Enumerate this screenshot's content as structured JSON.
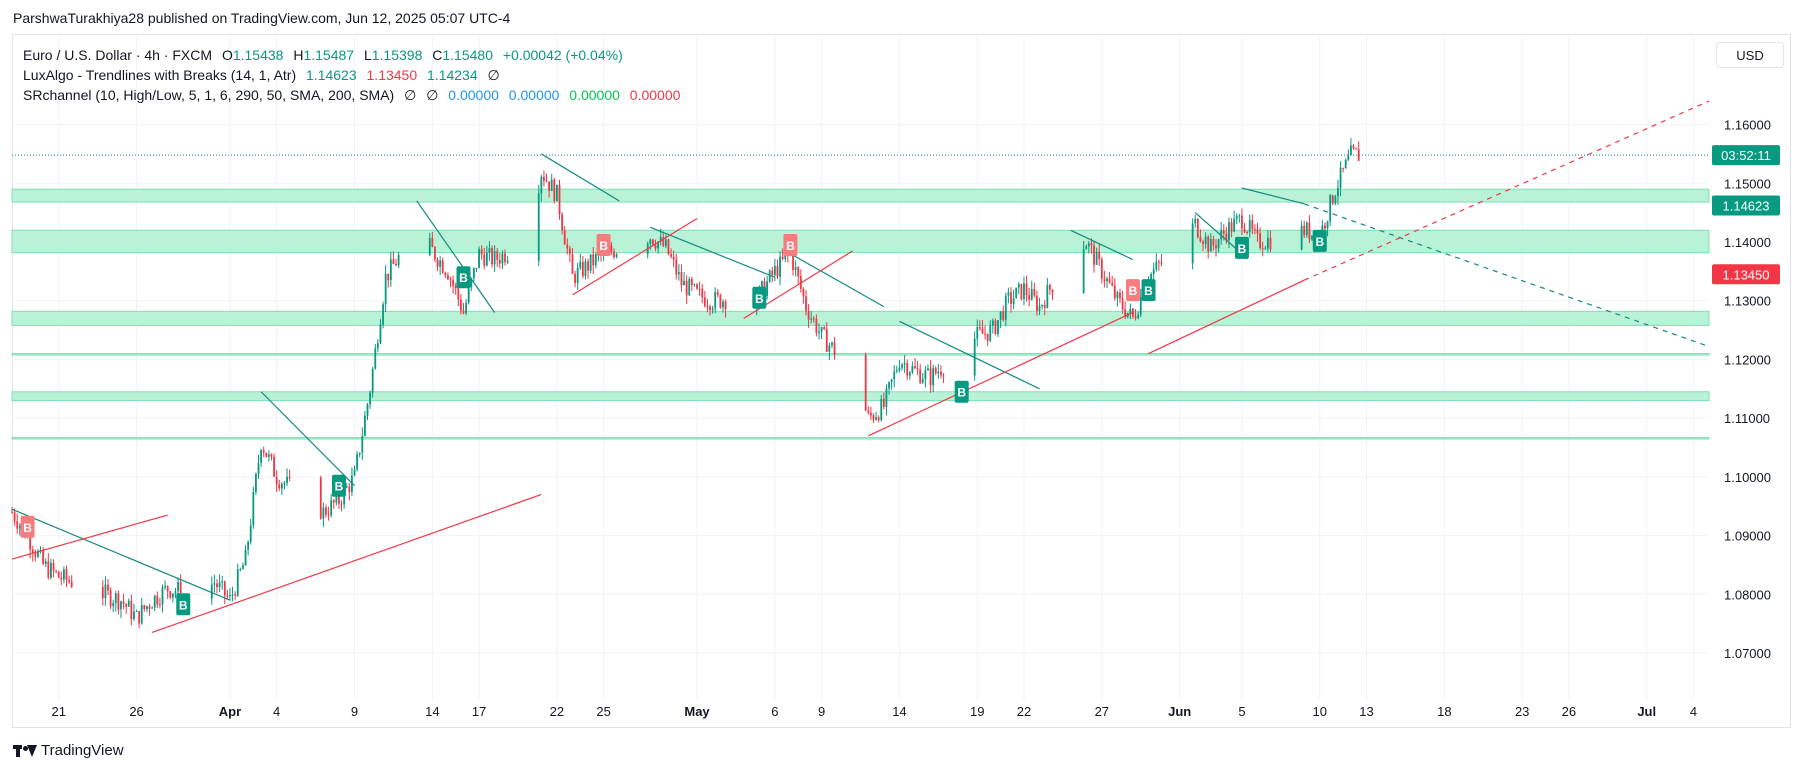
{
  "header": {
    "published_line": "ParshwaTurakhiya28 published on TradingView.com, Jun 12, 2025 05:07 UTC-4"
  },
  "legend": {
    "symbol": {
      "title": "Euro / U.S. Dollar · 4h · FXCM",
      "o_label": "O",
      "o_value": "1.15438",
      "h_label": "H",
      "h_value": "1.15487",
      "l_label": "L",
      "l_value": "1.15398",
      "c_label": "C",
      "c_value": "1.15480",
      "change": "+0.00042 (+0.04%)"
    },
    "luxalgo": {
      "title": "LuxAlgo - Trendlines with Breaks (14, 1, Atr)",
      "v1": "1.14623",
      "v2": "1.13450",
      "v3": "1.14234",
      "v4": "∅"
    },
    "srchannel": {
      "title": "SRchannel (10, High/Low, 5, 1, 6, 290, 50, SMA, 200, SMA)",
      "v1": "∅",
      "v2": "∅",
      "v3": "0.00000",
      "v4": "0.00000",
      "v5": "0.00000",
      "v6": "0.00000"
    }
  },
  "currency_button": "USD",
  "footer": {
    "brand": "TradingView"
  },
  "colors": {
    "up": "#089981",
    "down": "#f23645",
    "zone": "#b9f2d6",
    "zone_edge": "#7fe0b2",
    "teal_line": "#138a7f",
    "red_line": "#f23645",
    "grid": "#f0f3fa",
    "axis_text": "#131722"
  },
  "chart_data": {
    "type": "candlestick",
    "symbol": "EUR/USD",
    "interval": "4h",
    "y_axis": {
      "ticks": [
        1.16,
        1.15,
        1.14,
        1.13,
        1.12,
        1.11,
        1.1,
        1.09,
        1.08,
        1.07
      ],
      "tick_labels": [
        "1.16000",
        "1.15000",
        "1.14000",
        "1.13000",
        "1.12000",
        "1.11000",
        "1.10000",
        "1.09000",
        "1.08000",
        "1.07000"
      ],
      "range": [
        1.062,
        1.171
      ]
    },
    "x_axis": {
      "range": [
        "2025-03-18",
        "2025-07-05"
      ],
      "ticks": [
        {
          "date": "2025-03-21",
          "label": "21",
          "bold": false
        },
        {
          "date": "2025-03-26",
          "label": "26",
          "bold": false
        },
        {
          "date": "2025-04-01",
          "label": "Apr",
          "bold": true
        },
        {
          "date": "2025-04-04",
          "label": "4",
          "bold": false
        },
        {
          "date": "2025-04-09",
          "label": "9",
          "bold": false
        },
        {
          "date": "2025-04-14",
          "label": "14",
          "bold": false
        },
        {
          "date": "2025-04-17",
          "label": "17",
          "bold": false
        },
        {
          "date": "2025-04-22",
          "label": "22",
          "bold": false
        },
        {
          "date": "2025-04-25",
          "label": "25",
          "bold": false
        },
        {
          "date": "2025-05-01",
          "label": "May",
          "bold": true
        },
        {
          "date": "2025-05-06",
          "label": "6",
          "bold": false
        },
        {
          "date": "2025-05-09",
          "label": "9",
          "bold": false
        },
        {
          "date": "2025-05-14",
          "label": "14",
          "bold": false
        },
        {
          "date": "2025-05-19",
          "label": "19",
          "bold": false
        },
        {
          "date": "2025-05-22",
          "label": "22",
          "bold": false
        },
        {
          "date": "2025-05-27",
          "label": "27",
          "bold": false
        },
        {
          "date": "2025-06-01",
          "label": "Jun",
          "bold": true
        },
        {
          "date": "2025-06-05",
          "label": "5",
          "bold": false
        },
        {
          "date": "2025-06-10",
          "label": "10",
          "bold": false
        },
        {
          "date": "2025-06-13",
          "label": "13",
          "bold": false
        },
        {
          "date": "2025-06-18",
          "label": "18",
          "bold": false
        },
        {
          "date": "2025-06-23",
          "label": "23",
          "bold": false
        },
        {
          "date": "2025-06-26",
          "label": "26",
          "bold": false
        },
        {
          "date": "2025-07-01",
          "label": "Jul",
          "bold": true
        },
        {
          "date": "2025-07-04",
          "label": "4",
          "bold": false
        }
      ]
    },
    "price_path": [
      [
        "2025-03-18",
        1.094
      ],
      [
        "2025-03-19",
        1.09
      ],
      [
        "2025-03-20",
        1.085
      ],
      [
        "2025-03-21",
        1.083
      ],
      [
        "2025-03-24",
        1.08
      ],
      [
        "2025-03-25",
        1.079
      ],
      [
        "2025-03-26",
        1.076
      ],
      [
        "2025-03-27",
        1.079
      ],
      [
        "2025-03-28",
        1.081
      ],
      [
        "2025-03-30",
        1.08
      ],
      [
        "2025-03-31",
        1.082
      ],
      [
        "2025-04-01",
        1.079
      ],
      [
        "2025-04-02",
        1.086
      ],
      [
        "2025-04-03",
        1.106
      ],
      [
        "2025-04-04",
        1.1
      ],
      [
        "2025-04-07",
        1.094
      ],
      [
        "2025-04-08",
        1.096
      ],
      [
        "2025-04-09",
        1.1
      ],
      [
        "2025-04-10",
        1.115
      ],
      [
        "2025-04-11",
        1.134
      ],
      [
        "2025-04-13",
        1.142
      ],
      [
        "2025-04-15",
        1.135
      ],
      [
        "2025-04-16",
        1.128
      ],
      [
        "2025-04-17",
        1.138
      ],
      [
        "2025-04-18",
        1.137
      ],
      [
        "2025-04-20",
        1.14
      ],
      [
        "2025-04-21",
        1.152
      ],
      [
        "2025-04-22",
        1.148
      ],
      [
        "2025-04-23",
        1.134
      ],
      [
        "2025-04-24",
        1.136
      ],
      [
        "2025-04-25",
        1.138
      ],
      [
        "2025-04-28",
        1.141
      ],
      [
        "2025-04-29",
        1.139
      ],
      [
        "2025-04-30",
        1.133
      ],
      [
        "2025-05-01",
        1.131
      ],
      [
        "2025-05-02",
        1.13
      ],
      [
        "2025-05-05",
        1.131
      ],
      [
        "2025-05-06",
        1.135
      ],
      [
        "2025-05-07",
        1.138
      ],
      [
        "2025-05-08",
        1.129
      ],
      [
        "2025-05-09",
        1.124
      ],
      [
        "2025-05-11",
        1.118
      ],
      [
        "2025-05-12",
        1.11
      ],
      [
        "2025-05-13",
        1.112
      ],
      [
        "2025-05-14",
        1.12
      ],
      [
        "2025-05-15",
        1.118
      ],
      [
        "2025-05-16",
        1.117
      ],
      [
        "2025-05-19",
        1.124
      ],
      [
        "2025-05-20",
        1.125
      ],
      [
        "2025-05-21",
        1.13
      ],
      [
        "2025-05-22",
        1.132
      ],
      [
        "2025-05-23",
        1.129
      ],
      [
        "2025-05-25",
        1.138
      ],
      [
        "2025-05-26",
        1.14
      ],
      [
        "2025-05-27",
        1.135
      ],
      [
        "2025-05-28",
        1.13
      ],
      [
        "2025-05-29",
        1.127
      ],
      [
        "2025-05-30",
        1.134
      ],
      [
        "2025-06-02",
        1.143
      ],
      [
        "2025-06-03",
        1.139
      ],
      [
        "2025-06-04",
        1.142
      ],
      [
        "2025-06-05",
        1.144
      ],
      [
        "2025-06-06",
        1.14
      ],
      [
        "2025-06-08",
        1.141
      ],
      [
        "2025-06-09",
        1.142
      ],
      [
        "2025-06-10",
        1.141
      ],
      [
        "2025-06-11",
        1.149
      ],
      [
        "2025-06-12",
        1.1548
      ]
    ],
    "sr_zones": [
      {
        "low": 1.1468,
        "high": 1.149
      },
      {
        "low": 1.1382,
        "high": 1.142
      },
      {
        "low": 1.1258,
        "high": 1.1282
      },
      {
        "low": 1.113,
        "high": 1.1145
      },
      {
        "low": 1.1208,
        "high": 1.121
      },
      {
        "low": 1.1065,
        "high": 1.1067
      }
    ],
    "last_price_line": 1.1548,
    "price_labels": [
      {
        "text": "03:52:11",
        "price": 1.1548,
        "color": "#089981"
      },
      {
        "text": "1.14623",
        "price": 1.14623,
        "color": "#089981"
      },
      {
        "text": "1.13450",
        "price": 1.1345,
        "color": "#f23645"
      }
    ],
    "trendlines": [
      {
        "color": "teal",
        "x1": "2025-03-18",
        "y1": 1.0945,
        "x2": "2025-04-01",
        "y2": 1.079
      },
      {
        "color": "teal",
        "x1": "2025-04-03",
        "y1": 1.1145,
        "x2": "2025-04-09",
        "y2": 1.0985
      },
      {
        "color": "teal",
        "x1": "2025-04-13",
        "y1": 1.147,
        "x2": "2025-04-18",
        "y2": 1.128
      },
      {
        "color": "teal",
        "x1": "2025-04-21",
        "y1": 1.155,
        "x2": "2025-04-26",
        "y2": 1.147
      },
      {
        "color": "teal",
        "x1": "2025-04-28",
        "y1": 1.1425,
        "x2": "2025-05-06",
        "y2": 1.134
      },
      {
        "color": "teal",
        "x1": "2025-05-07",
        "y1": 1.138,
        "x2": "2025-05-13",
        "y2": 1.129
      },
      {
        "color": "teal",
        "x1": "2025-05-14",
        "y1": 1.1265,
        "x2": "2025-05-23",
        "y2": 1.115
      },
      {
        "color": "teal",
        "x1": "2025-05-25",
        "y1": 1.142,
        "x2": "2025-05-29",
        "y2": 1.137
      },
      {
        "color": "teal",
        "x1": "2025-06-02",
        "y1": 1.145,
        "x2": "2025-06-05",
        "y2": 1.138
      },
      {
        "color": "teal",
        "x1": "2025-06-05",
        "y1": 1.1492,
        "x2": "2025-06-09",
        "y2": 1.1465
      },
      {
        "color": "teal",
        "x1": "2025-06-09",
        "y1": 1.1465,
        "x2": "2025-07-05",
        "y2": 1.1222,
        "dashed": true
      },
      {
        "color": "red",
        "x1": "2025-03-18",
        "y1": 1.086,
        "x2": "2025-03-28",
        "y2": 1.0935
      },
      {
        "color": "red",
        "x1": "2025-03-27",
        "y1": 1.0735,
        "x2": "2025-04-21",
        "y2": 1.097
      },
      {
        "color": "red",
        "x1": "2025-04-23",
        "y1": 1.131,
        "x2": "2025-05-01",
        "y2": 1.144
      },
      {
        "color": "red",
        "x1": "2025-05-04",
        "y1": 1.127,
        "x2": "2025-05-11",
        "y2": 1.1385
      },
      {
        "color": "red",
        "x1": "2025-05-12",
        "y1": 1.107,
        "x2": "2025-05-29",
        "y2": 1.128
      },
      {
        "color": "red",
        "x1": "2025-05-30",
        "y1": 1.121,
        "x2": "2025-06-09",
        "y2": 1.1335
      },
      {
        "color": "red",
        "x1": "2025-06-09",
        "y1": 1.1335,
        "x2": "2025-07-05",
        "y2": 1.164,
        "dashed": true
      }
    ],
    "break_markers": [
      {
        "label": "B",
        "kind": "bearish",
        "date": "2025-03-19",
        "price": 1.0915
      },
      {
        "label": "B",
        "kind": "bullish",
        "date": "2025-03-29",
        "price": 1.0783
      },
      {
        "label": "B",
        "kind": "bullish",
        "date": "2025-04-08",
        "price": 1.0985
      },
      {
        "label": "B",
        "kind": "bullish",
        "date": "2025-04-16",
        "price": 1.134
      },
      {
        "label": "B",
        "kind": "bearish",
        "date": "2025-04-25",
        "price": 1.1395
      },
      {
        "label": "B",
        "kind": "bullish",
        "date": "2025-05-05",
        "price": 1.1305
      },
      {
        "label": "B",
        "kind": "bearish",
        "date": "2025-05-07",
        "price": 1.1395
      },
      {
        "label": "B",
        "kind": "bullish",
        "date": "2025-05-18",
        "price": 1.1145
      },
      {
        "label": "B",
        "kind": "bearish",
        "date": "2025-05-29",
        "price": 1.1318
      },
      {
        "label": "B",
        "kind": "bullish",
        "date": "2025-05-30",
        "price": 1.1318
      },
      {
        "label": "B",
        "kind": "bullish",
        "date": "2025-06-05",
        "price": 1.139
      },
      {
        "label": "B",
        "kind": "bullish",
        "date": "2025-06-10",
        "price": 1.1402
      }
    ]
  }
}
